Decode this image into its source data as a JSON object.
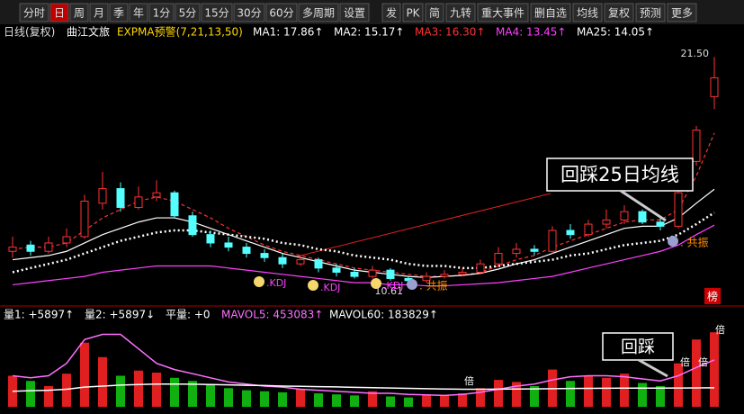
{
  "toolbar_left": [
    "分时",
    "日",
    "周",
    "月",
    "季",
    "年",
    "1分",
    "5分",
    "15分",
    "30分",
    "60分",
    "多周期",
    "设置"
  ],
  "toolbar_right": [
    "发",
    "PK",
    "简",
    "九转",
    "重大事件",
    "删自选",
    "均线",
    "复权",
    "预测",
    "更多"
  ],
  "info": {
    "period": "日线(复权)",
    "name": "曲江文旅",
    "indicator": "EXPMA预警(7,21,13,50)",
    "ma": [
      {
        "text": "MA1: 17.86↑",
        "color": "#ffffff"
      },
      {
        "text": "MA2: 15.17↑",
        "color": "#ffffff"
      },
      {
        "text": "MA3: 16.30↑",
        "color": "#ff3232"
      },
      {
        "text": "MA4: 13.45↑",
        "color": "#ff40ff"
      },
      {
        "text": "MA25: 14.05↑",
        "color": "#ffffff"
      }
    ]
  },
  "chart_data": [
    {
      "type": "candlestick",
      "up_color": "#ff3232",
      "down_color": "#54ffff",
      "ylim": [
        9.8,
        22.5
      ],
      "open": [
        12.2,
        12.5,
        12.2,
        12.6,
        12.9,
        14.5,
        15.2,
        14.3,
        14.8,
        15.0,
        13.9,
        13.0,
        12.6,
        12.4,
        12.1,
        11.9,
        11.6,
        11.8,
        11.4,
        11.2,
        11.0,
        11.3,
        10.9,
        10.8,
        11.0,
        11.1,
        11.2,
        11.6,
        12.1,
        12.3,
        12.2,
        13.2,
        13.0,
        13.5,
        13.7,
        14.1,
        13.6,
        13.4,
        16.5,
        19.6
      ],
      "high": [
        12.9,
        12.7,
        12.9,
        13.3,
        14.9,
        16.0,
        15.5,
        15.3,
        15.6,
        15.1,
        14.1,
        13.2,
        12.9,
        12.6,
        12.3,
        12.1,
        12.0,
        11.9,
        11.6,
        11.4,
        11.5,
        11.4,
        11.0,
        11.2,
        11.3,
        11.4,
        11.8,
        12.4,
        12.6,
        12.5,
        13.4,
        13.5,
        13.7,
        14.2,
        14.4,
        14.2,
        13.9,
        15.1,
        18.2,
        21.5
      ],
      "low": [
        11.9,
        12.0,
        12.1,
        12.4,
        12.8,
        14.2,
        14.1,
        14.2,
        14.6,
        13.8,
        12.9,
        12.4,
        12.2,
        11.9,
        11.7,
        11.4,
        11.5,
        11.2,
        11.0,
        10.9,
        10.9,
        10.8,
        10.61,
        10.7,
        10.9,
        11.0,
        11.1,
        11.5,
        11.9,
        12.0,
        12.1,
        12.8,
        12.9,
        13.3,
        13.5,
        13.5,
        13.2,
        13.3,
        16.3,
        19.0
      ],
      "close": [
        12.4,
        12.2,
        12.6,
        12.9,
        14.6,
        15.2,
        14.3,
        14.8,
        15.0,
        13.9,
        13.0,
        12.6,
        12.4,
        12.1,
        11.9,
        11.6,
        11.8,
        11.4,
        11.2,
        11.0,
        11.3,
        10.9,
        10.8,
        11.0,
        11.1,
        11.2,
        11.6,
        12.1,
        12.3,
        12.2,
        13.2,
        13.0,
        13.5,
        13.7,
        14.1,
        13.6,
        13.4,
        15.0,
        18.0,
        20.5
      ],
      "lines": [
        {
          "name": "MA1",
          "color": "#ff3232",
          "style": "dashed",
          "values": [
            12.3,
            12.4,
            12.4,
            12.6,
            13.2,
            13.8,
            14.2,
            14.6,
            14.8,
            14.6,
            14.2,
            13.8,
            13.3,
            12.9,
            12.5,
            12.2,
            12.0,
            11.8,
            11.6,
            11.4,
            11.3,
            11.2,
            11.1,
            11.0,
            11.0,
            11.05,
            11.2,
            11.5,
            11.8,
            12.0,
            12.4,
            12.7,
            13.0,
            13.3,
            13.6,
            13.7,
            13.7,
            14.2,
            15.8,
            17.86
          ]
        },
        {
          "name": "MA2",
          "color": "#ffffff",
          "style": "solid",
          "values": [
            11.8,
            11.9,
            12.0,
            12.2,
            12.6,
            13.0,
            13.3,
            13.6,
            13.8,
            13.8,
            13.6,
            13.3,
            13.0,
            12.7,
            12.4,
            12.1,
            11.9,
            11.7,
            11.5,
            11.3,
            11.2,
            11.1,
            11.0,
            10.95,
            11.0,
            11.05,
            11.15,
            11.35,
            11.6,
            11.8,
            12.1,
            12.4,
            12.7,
            13.0,
            13.3,
            13.4,
            13.4,
            13.8,
            14.5,
            15.17
          ]
        },
        {
          "name": "MA4",
          "color": "#ff40ff",
          "style": "solid",
          "values": [
            10.6,
            10.7,
            10.8,
            10.9,
            11.0,
            11.2,
            11.3,
            11.4,
            11.5,
            11.5,
            11.5,
            11.5,
            11.4,
            11.3,
            11.2,
            11.1,
            11.0,
            10.9,
            10.8,
            10.7,
            10.7,
            10.6,
            10.6,
            10.55,
            10.55,
            10.6,
            10.65,
            10.7,
            10.8,
            10.9,
            11.0,
            11.2,
            11.4,
            11.6,
            11.8,
            12.0,
            12.2,
            12.5,
            13.0,
            13.45
          ]
        },
        {
          "name": "MA25",
          "color": "#ffffff",
          "style": "dotted",
          "values": [
            11.2,
            11.4,
            11.6,
            11.8,
            12.1,
            12.4,
            12.7,
            12.9,
            13.1,
            13.2,
            13.2,
            13.1,
            13.0,
            12.9,
            12.8,
            12.6,
            12.5,
            12.3,
            12.2,
            12.0,
            11.9,
            11.8,
            11.6,
            11.5,
            11.5,
            11.4,
            11.4,
            11.5,
            11.6,
            11.7,
            11.8,
            12.0,
            12.1,
            12.3,
            12.5,
            12.6,
            12.7,
            13.0,
            13.5,
            14.05
          ]
        }
      ],
      "price_labels": [
        {
          "value": 21.5,
          "label": "21.50"
        },
        {
          "value": 10.61,
          "label": "10.61"
        }
      ]
    },
    {
      "type": "bar",
      "ylim": [
        0,
        800000
      ],
      "up_color": "#e02020",
      "down_color": "#10b010",
      "values": [
        300000,
        250000,
        200000,
        320000,
        620000,
        480000,
        300000,
        350000,
        330000,
        280000,
        250000,
        220000,
        180000,
        160000,
        150000,
        140000,
        170000,
        130000,
        120000,
        110000,
        150000,
        100000,
        90000,
        120000,
        110000,
        130000,
        180000,
        260000,
        240000,
        200000,
        360000,
        250000,
        300000,
        280000,
        320000,
        230000,
        200000,
        420000,
        650000,
        720000
      ],
      "lines": [
        {
          "name": "MAVOL5",
          "color": "#ff70ff",
          "values": [
            300000,
            280000,
            300000,
            420000,
            650000,
            700000,
            700000,
            560000,
            420000,
            360000,
            320000,
            280000,
            240000,
            220000,
            200000,
            190000,
            170000,
            160000,
            150000,
            140000,
            130000,
            130000,
            120000,
            115000,
            110000,
            120000,
            140000,
            170000,
            200000,
            220000,
            260000,
            290000,
            300000,
            300000,
            290000,
            270000,
            250000,
            300000,
            380000,
            453083
          ]
        },
        {
          "name": "MAVOL60",
          "color": "#ffffff",
          "values": [
            150000,
            155000,
            160000,
            170000,
            190000,
            200000,
            210000,
            215000,
            220000,
            220000,
            218000,
            215000,
            212000,
            208000,
            205000,
            200000,
            198000,
            195000,
            192000,
            188000,
            185000,
            182000,
            178000,
            175000,
            172000,
            170000,
            170000,
            171000,
            172000,
            173000,
            175000,
            177000,
            178000,
            179000,
            180000,
            180000,
            180000,
            181000,
            182500,
            183829
          ]
        }
      ]
    }
  ],
  "volume_legend": [
    {
      "text": "量1: +5897↑",
      "color": "#ffffff"
    },
    {
      "text": "量2: +5897↓",
      "color": "#ffffff"
    },
    {
      "text": "平量: +0",
      "color": "#ffffff"
    },
    {
      "text": "MAVOL5: 453083↑",
      "color": "#ff70ff"
    },
    {
      "text": "MAVOL60: 183829↑",
      "color": "#ffffff"
    }
  ],
  "callouts": [
    "回踩25日均线",
    "回踩"
  ],
  "signals": {
    "kdj": [
      ".KDJ",
      ".KDJ",
      ".KDJ"
    ],
    "resonance": [
      ". 共振",
      ". 共振"
    ],
    "multiple": [
      "倍",
      "倍",
      "倍",
      "倍"
    ]
  },
  "badge": "榜"
}
